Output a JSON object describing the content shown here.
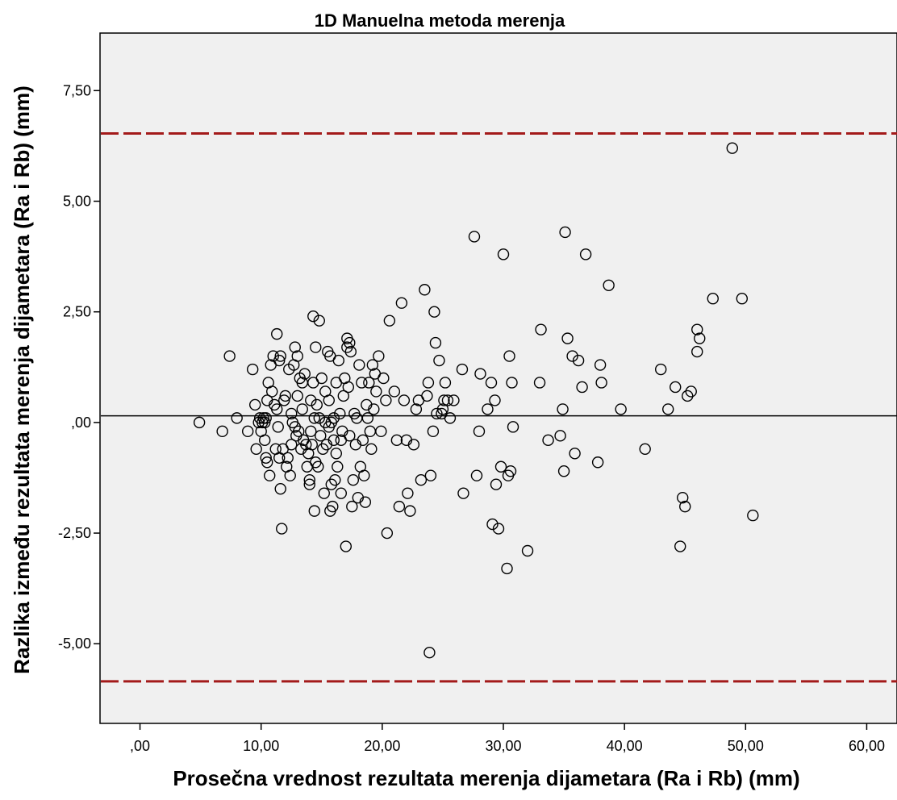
{
  "chart_data": {
    "type": "scatter",
    "title": "1D Manuelna metoda merenja",
    "xlabel": "Prosečna vrednost rezultata merenja dijametara (Ra i Rb) (mm)",
    "ylabel": "Razlika između rezultata merenja dijametara (Ra i Rb) (mm)",
    "xlim": [
      -3.3,
      62.5
    ],
    "ylim": [
      -6.8,
      8.8
    ],
    "xticks": [
      0,
      10,
      20,
      30,
      40,
      50,
      60
    ],
    "xtick_labels": [
      ",00",
      "10,00",
      "20,00",
      "30,00",
      "40,00",
      "50,00",
      "60,00"
    ],
    "yticks": [
      7.5,
      5,
      2.5,
      0,
      -2.5,
      -5
    ],
    "ytick_labels": [
      "7,50",
      "5,00",
      "2,50",
      ",00",
      "-2,50",
      "-5,00"
    ],
    "grid": false,
    "reference_lines": [
      {
        "y": 6.53,
        "style": "dashed",
        "color": "#a31a1a"
      },
      {
        "y": 0.15,
        "style": "solid",
        "color": "#000000"
      },
      {
        "y": -5.85,
        "style": "dashed",
        "color": "#a31a1a"
      }
    ],
    "background_color": "#f0f0f0",
    "marker": "open-circle",
    "points": [
      [
        4.9,
        0.0
      ],
      [
        6.8,
        -0.2
      ],
      [
        7.4,
        1.5
      ],
      [
        8.0,
        0.1
      ],
      [
        8.9,
        -0.2
      ],
      [
        9.3,
        1.2
      ],
      [
        9.5,
        0.4
      ],
      [
        9.6,
        -0.6
      ],
      [
        9.8,
        0.0
      ],
      [
        9.9,
        0.1
      ],
      [
        10.0,
        -0.2
      ],
      [
        10.1,
        0.0
      ],
      [
        10.2,
        0.1
      ],
      [
        10.3,
        0.0
      ],
      [
        10.4,
        0.1
      ],
      [
        10.3,
        -0.4
      ],
      [
        10.4,
        -0.8
      ],
      [
        10.5,
        -0.9
      ],
      [
        10.5,
        0.5
      ],
      [
        10.6,
        0.9
      ],
      [
        10.7,
        -1.2
      ],
      [
        10.8,
        1.3
      ],
      [
        10.9,
        0.7
      ],
      [
        11.0,
        1.5
      ],
      [
        11.1,
        0.4
      ],
      [
        11.2,
        -0.6
      ],
      [
        11.3,
        2.0
      ],
      [
        11.3,
        0.3
      ],
      [
        11.4,
        -0.1
      ],
      [
        11.5,
        1.4
      ],
      [
        11.5,
        -0.8
      ],
      [
        11.6,
        -1.5
      ],
      [
        11.6,
        1.5
      ],
      [
        11.7,
        -2.4
      ],
      [
        11.8,
        -0.6
      ],
      [
        11.9,
        0.5
      ],
      [
        12.0,
        0.6
      ],
      [
        12.1,
        -1.0
      ],
      [
        12.2,
        -0.8
      ],
      [
        12.3,
        1.2
      ],
      [
        12.4,
        -1.2
      ],
      [
        12.5,
        0.2
      ],
      [
        12.5,
        -0.5
      ],
      [
        12.6,
        0.0
      ],
      [
        12.7,
        1.3
      ],
      [
        12.8,
        1.7
      ],
      [
        12.8,
        -0.1
      ],
      [
        12.9,
        -0.3
      ],
      [
        13.0,
        1.5
      ],
      [
        13.0,
        0.6
      ],
      [
        13.1,
        -0.2
      ],
      [
        13.2,
        1.0
      ],
      [
        13.3,
        -0.6
      ],
      [
        13.4,
        0.3
      ],
      [
        13.4,
        0.9
      ],
      [
        13.5,
        -0.4
      ],
      [
        13.6,
        1.1
      ],
      [
        13.7,
        -0.5
      ],
      [
        13.8,
        -1.0
      ],
      [
        13.9,
        -0.7
      ],
      [
        14.0,
        -1.3
      ],
      [
        14.0,
        -1.4
      ],
      [
        14.1,
        0.5
      ],
      [
        14.1,
        -0.2
      ],
      [
        14.2,
        -0.5
      ],
      [
        14.3,
        0.9
      ],
      [
        14.3,
        2.4
      ],
      [
        14.4,
        -2.0
      ],
      [
        14.4,
        0.1
      ],
      [
        14.5,
        1.7
      ],
      [
        14.5,
        -0.9
      ],
      [
        14.6,
        0.4
      ],
      [
        14.7,
        -1.0
      ],
      [
        14.8,
        2.3
      ],
      [
        14.8,
        0.1
      ],
      [
        14.9,
        -0.3
      ],
      [
        15.0,
        1.0
      ],
      [
        15.1,
        -0.6
      ],
      [
        15.2,
        -1.6
      ],
      [
        15.3,
        0.7
      ],
      [
        15.3,
        0.0
      ],
      [
        15.4,
        -0.5
      ],
      [
        15.5,
        1.6
      ],
      [
        15.6,
        -0.1
      ],
      [
        15.6,
        0.5
      ],
      [
        15.7,
        1.5
      ],
      [
        15.7,
        -2.0
      ],
      [
        15.8,
        0.0
      ],
      [
        15.8,
        -1.4
      ],
      [
        15.9,
        -1.9
      ],
      [
        16.0,
        0.1
      ],
      [
        16.0,
        -0.4
      ],
      [
        16.1,
        -1.3
      ],
      [
        16.2,
        0.9
      ],
      [
        16.2,
        -0.7
      ],
      [
        16.3,
        -1.0
      ],
      [
        16.4,
        1.4
      ],
      [
        16.5,
        0.2
      ],
      [
        16.6,
        -0.4
      ],
      [
        16.6,
        -1.6
      ],
      [
        16.7,
        -0.2
      ],
      [
        16.8,
        0.6
      ],
      [
        16.9,
        1.0
      ],
      [
        17.0,
        -2.8
      ],
      [
        17.1,
        1.9
      ],
      [
        17.1,
        1.7
      ],
      [
        17.2,
        0.8
      ],
      [
        17.3,
        1.8
      ],
      [
        17.3,
        -0.3
      ],
      [
        17.4,
        1.6
      ],
      [
        17.5,
        -1.9
      ],
      [
        17.6,
        -1.3
      ],
      [
        17.7,
        0.2
      ],
      [
        17.8,
        -0.5
      ],
      [
        17.9,
        0.1
      ],
      [
        18.0,
        -1.7
      ],
      [
        18.1,
        1.3
      ],
      [
        18.2,
        -1.0
      ],
      [
        18.3,
        0.9
      ],
      [
        18.4,
        -0.4
      ],
      [
        18.5,
        -1.2
      ],
      [
        18.6,
        -1.8
      ],
      [
        18.7,
        0.4
      ],
      [
        18.8,
        0.1
      ],
      [
        18.9,
        0.9
      ],
      [
        19.0,
        -0.2
      ],
      [
        19.1,
        -0.6
      ],
      [
        19.2,
        1.3
      ],
      [
        19.3,
        0.3
      ],
      [
        19.4,
        1.1
      ],
      [
        19.5,
        0.7
      ],
      [
        19.7,
        1.5
      ],
      [
        19.9,
        -0.2
      ],
      [
        20.1,
        1.0
      ],
      [
        20.3,
        0.5
      ],
      [
        20.4,
        -2.5
      ],
      [
        20.6,
        2.3
      ],
      [
        21.0,
        0.7
      ],
      [
        21.2,
        -0.4
      ],
      [
        21.4,
        -1.9
      ],
      [
        21.6,
        2.7
      ],
      [
        21.8,
        0.5
      ],
      [
        22.0,
        -0.4
      ],
      [
        22.1,
        -1.6
      ],
      [
        22.3,
        -2.0
      ],
      [
        22.6,
        -0.5
      ],
      [
        22.8,
        0.3
      ],
      [
        23.0,
        0.5
      ],
      [
        23.2,
        -1.3
      ],
      [
        23.5,
        3.0
      ],
      [
        23.7,
        0.6
      ],
      [
        23.8,
        0.9
      ],
      [
        23.9,
        -5.2
      ],
      [
        24.0,
        -1.2
      ],
      [
        24.2,
        -0.2
      ],
      [
        24.3,
        2.5
      ],
      [
        24.4,
        1.8
      ],
      [
        24.5,
        0.2
      ],
      [
        24.7,
        1.4
      ],
      [
        24.9,
        0.2
      ],
      [
        25.0,
        0.3
      ],
      [
        25.1,
        0.5
      ],
      [
        25.2,
        0.9
      ],
      [
        25.4,
        0.5
      ],
      [
        25.6,
        0.1
      ],
      [
        25.9,
        0.5
      ],
      [
        26.6,
        1.2
      ],
      [
        26.7,
        -1.6
      ],
      [
        27.6,
        4.2
      ],
      [
        27.8,
        -1.2
      ],
      [
        28.1,
        1.1
      ],
      [
        28.0,
        -0.2
      ],
      [
        28.7,
        0.3
      ],
      [
        29.0,
        0.9
      ],
      [
        29.1,
        -2.3
      ],
      [
        29.3,
        0.5
      ],
      [
        29.4,
        -1.4
      ],
      [
        29.6,
        -2.4
      ],
      [
        29.8,
        -1.0
      ],
      [
        30.0,
        3.8
      ],
      [
        30.3,
        -3.3
      ],
      [
        30.4,
        -1.2
      ],
      [
        30.5,
        1.5
      ],
      [
        30.6,
        -1.1
      ],
      [
        30.7,
        0.9
      ],
      [
        30.8,
        -0.1
      ],
      [
        32.0,
        -2.9
      ],
      [
        33.0,
        0.9
      ],
      [
        33.1,
        2.1
      ],
      [
        33.7,
        -0.4
      ],
      [
        34.7,
        -0.3
      ],
      [
        34.9,
        0.3
      ],
      [
        35.0,
        -1.1
      ],
      [
        35.1,
        4.3
      ],
      [
        35.3,
        1.9
      ],
      [
        35.7,
        1.5
      ],
      [
        35.9,
        -0.7
      ],
      [
        36.2,
        1.4
      ],
      [
        36.5,
        0.8
      ],
      [
        36.8,
        3.8
      ],
      [
        37.8,
        -0.9
      ],
      [
        38.0,
        1.3
      ],
      [
        38.1,
        0.9
      ],
      [
        38.7,
        3.1
      ],
      [
        39.7,
        0.3
      ],
      [
        41.7,
        -0.6
      ],
      [
        43.0,
        1.2
      ],
      [
        43.6,
        0.3
      ],
      [
        44.2,
        0.8
      ],
      [
        44.6,
        -2.8
      ],
      [
        44.8,
        -1.7
      ],
      [
        45.0,
        -1.9
      ],
      [
        45.2,
        0.6
      ],
      [
        45.5,
        0.7
      ],
      [
        46.0,
        2.1
      ],
      [
        46.0,
        1.6
      ],
      [
        46.2,
        1.9
      ],
      [
        47.3,
        2.8
      ],
      [
        48.9,
        6.2
      ],
      [
        49.7,
        2.8
      ],
      [
        50.6,
        -2.1
      ]
    ]
  }
}
